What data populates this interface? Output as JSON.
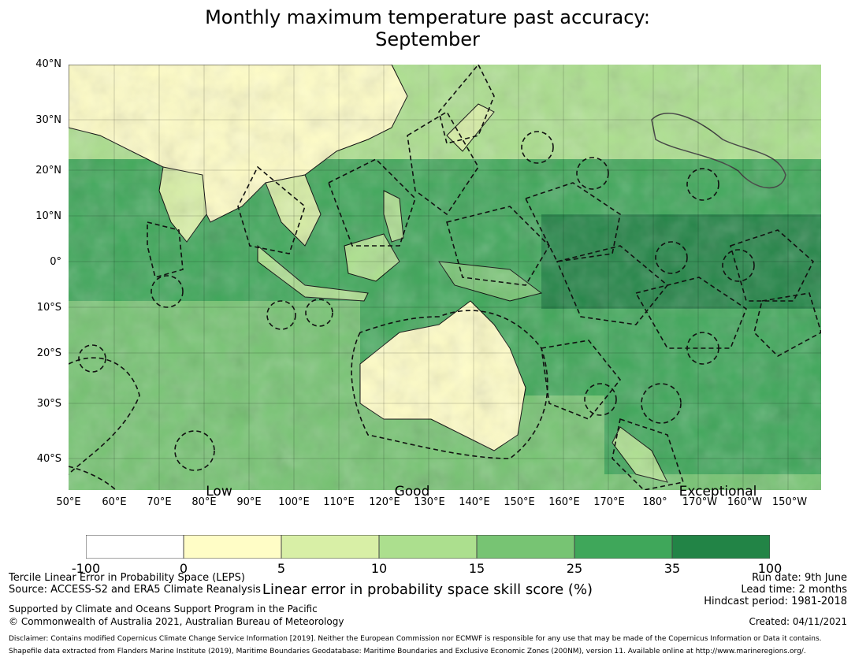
{
  "title_line1": "Monthly maximum temperature past accuracy:",
  "title_line2": "September",
  "map": {
    "lat_labels": [
      "40°N",
      "30°N",
      "20°N",
      "10°N",
      "0°",
      "10°S",
      "20°S",
      "30°S",
      "40°S"
    ],
    "lon_labels": [
      "50°E",
      "60°E",
      "70°E",
      "80°E",
      "90°E",
      "100°E",
      "110°E",
      "120°E",
      "130°E",
      "140°E",
      "150°E",
      "160°E",
      "170°E",
      "180°",
      "170°W",
      "160°W",
      "150°W"
    ],
    "categories": [
      "Low",
      "Good",
      "Exceptional"
    ],
    "extent": {
      "lon_min": 50,
      "lon_max": 217,
      "lat_min": -45,
      "lat_max": 40
    },
    "ocean_color": "#41a85a"
  },
  "colorbar": {
    "bounds": [
      "-100",
      "0",
      "5",
      "10",
      "15",
      "25",
      "35",
      "100"
    ],
    "colors": [
      "#ffffff",
      "#fffdc6",
      "#d8efa6",
      "#acdf8e",
      "#77c473",
      "#3fa75a",
      "#228446"
    ],
    "label": "Linear error in probability space skill score (%)"
  },
  "footer": {
    "left_line1": "Tercile Linear Error in Probability Space (LEPS)",
    "left_line2": "Source: ACCESS-S2 and ERA5 Climate Reanalysis",
    "support_line1": "Supported by Climate and Oceans Support Program in the Pacific",
    "support_line2": "© Commonwealth of Australia 2021, Australian Bureau of Meteorology",
    "run_date": "Run date: 9th June",
    "lead_time": "Lead time: 2 months",
    "hindcast": "Hindcast period: 1981-2018",
    "created": "Created: 04/11/2021",
    "disclaimer": "Disclaimer: Contains modified Copernicus Climate Change Service Information [2019]. Neither the European Commission nor ECMWF is responsible for any use that may be made of the Copernicus Information or Data it contains.",
    "shapefile": "Shapefile data extracted from Flanders Marine Institute (2019), Maritime Boundaries Geodatabase: Maritime Boundaries and Exclusive Economic Zones (200NM), version 11. Available online at http://www.marineregions.org/."
  }
}
